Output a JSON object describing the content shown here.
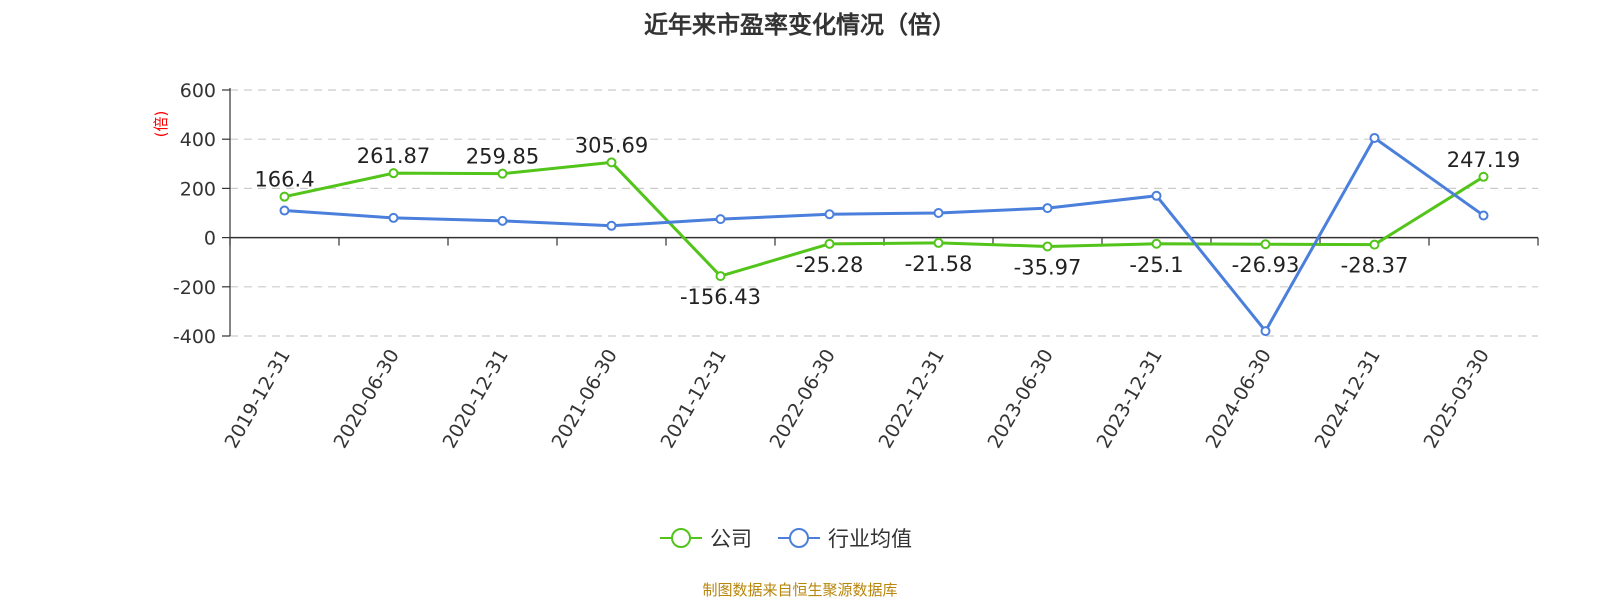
{
  "title": "近年来市盈率变化情况（倍）",
  "source_note": "制图数据来自恒生聚源数据库",
  "chart_data": {
    "type": "line",
    "title": "近年来市盈率变化情况（倍）",
    "ylabel": "(倍)",
    "xlabel": "",
    "categories": [
      "2019-12-31",
      "2020-06-30",
      "2020-12-31",
      "2021-06-30",
      "2021-12-31",
      "2022-06-30",
      "2022-12-31",
      "2023-06-30",
      "2023-12-31",
      "2024-06-30",
      "2024-12-31",
      "2025-03-30"
    ],
    "ylim": [
      -400,
      600
    ],
    "yticks": [
      600,
      400,
      200,
      0,
      -200,
      -400
    ],
    "grid": true,
    "legend_placement": "bottom-center",
    "series": [
      {
        "name": "公司",
        "color": "#52c41a",
        "values": [
          166.4,
          261.87,
          259.85,
          305.69,
          -156.43,
          -25.28,
          -21.58,
          -35.97,
          -25.1,
          -26.93,
          -28.37,
          247.19
        ],
        "labels": [
          "166.4",
          "261.87",
          "259.85",
          "305.69",
          "-156.43",
          "-25.28",
          "-21.58",
          "-35.97",
          "-25.1",
          "-26.93",
          "-28.37",
          "247.19"
        ]
      },
      {
        "name": "行业均值",
        "color": "#4a7fdc",
        "values": [
          110,
          80,
          68,
          48,
          75,
          95,
          100,
          120,
          170,
          -380,
          405,
          90
        ]
      }
    ]
  }
}
